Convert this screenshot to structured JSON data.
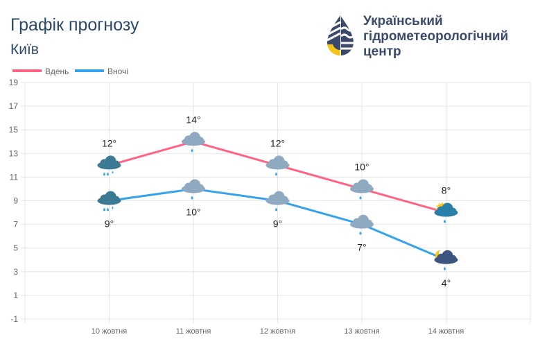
{
  "header": {
    "title": "Графік прогнозу",
    "city": "Київ"
  },
  "logo": {
    "line1": "Український",
    "line2": "гідрометеорологічний",
    "line3": "центр"
  },
  "colors": {
    "day": "#ff6384",
    "night": "#36a2eb",
    "grid": "#e5e5e5"
  },
  "chart_data": {
    "type": "line",
    "categories": [
      "10 жовтня",
      "11 жовтня",
      "12 жовтня",
      "13 жовтня",
      "14 жовтня"
    ],
    "series": [
      {
        "name": "Вдень",
        "values": [
          12,
          14,
          12,
          10,
          8
        ],
        "labels": [
          "12°",
          "14°",
          "12°",
          "10°",
          "8°"
        ],
        "icons": [
          "cloud-rain-dark",
          "cloud-rain",
          "cloud-rain",
          "cloud-rain",
          "sun-cloud-rain"
        ]
      },
      {
        "name": "Вночі",
        "values": [
          9,
          10,
          9,
          7,
          4
        ],
        "labels": [
          "9°",
          "10°",
          "9°",
          "7°",
          "4°"
        ],
        "icons": [
          "cloud-rain-dark",
          "cloud-rain",
          "cloud-rain",
          "cloud-rain",
          "moon-cloud-rain"
        ]
      }
    ],
    "yticks": [
      "19",
      "17",
      "15",
      "13",
      "11",
      "9",
      "7",
      "5",
      "3",
      "1",
      "-1"
    ],
    "ylim": [
      -1,
      19
    ],
    "legend": "top-left",
    "grid": true
  }
}
